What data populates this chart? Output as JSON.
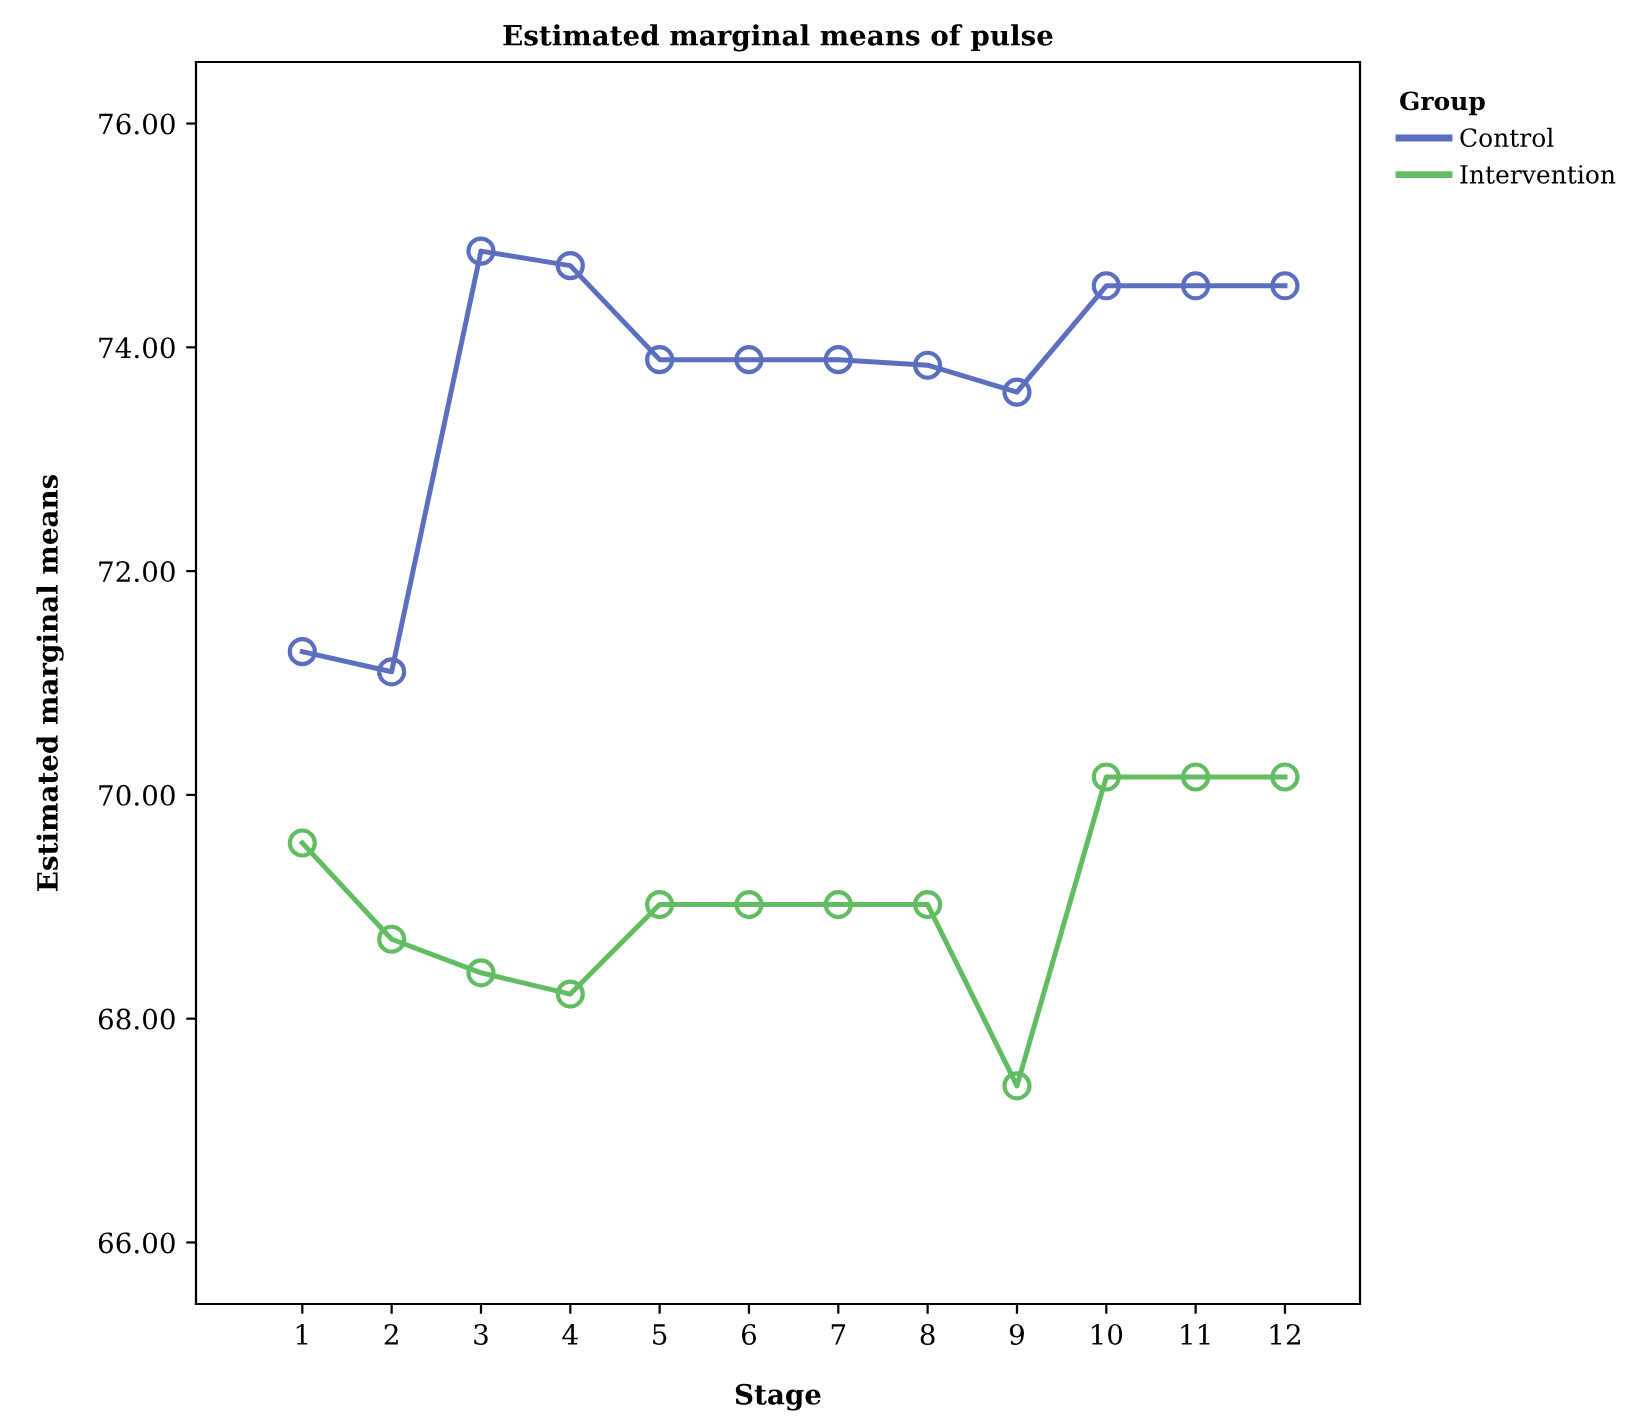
{
  "chart_data": {
    "type": "line",
    "title": "Estimated marginal means of pulse",
    "xlabel": "Stage",
    "ylabel": "Estimated marginal means",
    "legend_title": "Group",
    "categories": [
      "1",
      "2",
      "3",
      "4",
      "5",
      "6",
      "7",
      "8",
      "9",
      "10",
      "11",
      "12"
    ],
    "series": [
      {
        "name": "Control",
        "color": "#5c6fbf",
        "values": [
          71.28,
          71.1,
          74.86,
          74.73,
          73.89,
          73.89,
          73.89,
          73.84,
          73.6,
          74.55,
          74.55,
          74.55
        ]
      },
      {
        "name": "Intervention",
        "color": "#62bd62",
        "values": [
          69.57,
          68.71,
          68.41,
          68.22,
          69.02,
          69.02,
          69.02,
          69.02,
          67.4,
          70.16,
          70.16,
          70.16
        ]
      }
    ],
    "ylim": [
      65.45,
      76.55
    ],
    "yticks": [
      {
        "value": 66,
        "label": "66.00"
      },
      {
        "value": 68,
        "label": "68.00"
      },
      {
        "value": 70,
        "label": "70.00"
      },
      {
        "value": 72,
        "label": "72.00"
      },
      {
        "value": 74,
        "label": "74.00"
      },
      {
        "value": 76,
        "label": "76.00"
      }
    ],
    "grid": false,
    "legend": "top right",
    "marker": "circle",
    "line_style": "solid"
  }
}
